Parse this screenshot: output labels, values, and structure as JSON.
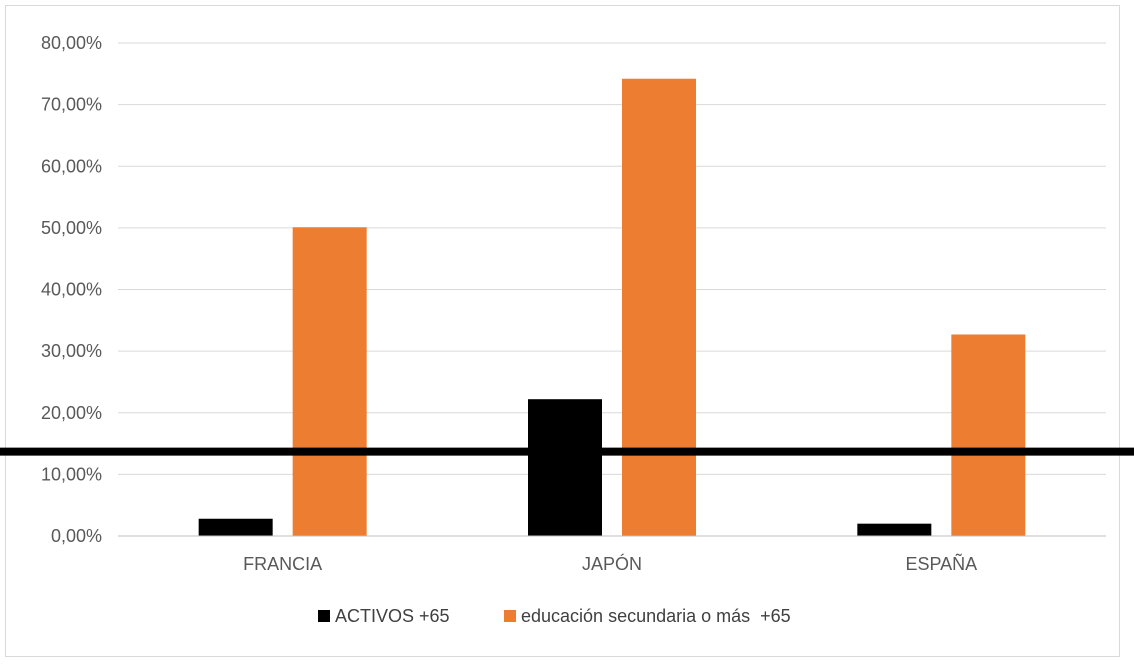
{
  "chart_data": {
    "type": "bar",
    "categories": [
      "FRANCIA",
      "JAPÓN",
      "ESPAÑA"
    ],
    "series": [
      {
        "name": "ACTIVOS +65",
        "values": [
          2.8,
          22.2,
          2.0
        ],
        "color": "#000000"
      },
      {
        "name": "educación secundaria o más  +65",
        "values": [
          50.1,
          74.2,
          32.7
        ],
        "color": "#ed7d31"
      }
    ],
    "ylim": [
      0,
      80
    ],
    "yticks": [
      0,
      10,
      20,
      30,
      40,
      50,
      60,
      70,
      80
    ],
    "ytick_labels": [
      "0,00%",
      "10,00%",
      "20,00%",
      "30,00%",
      "40,00%",
      "50,00%",
      "60,00%",
      "70,00%",
      "80,00%"
    ],
    "reference_line": {
      "value": 13.7,
      "color": "#000000"
    },
    "grid": true,
    "legend_position": "bottom",
    "gridline_color": "#d9d9d9",
    "axis_color": "#bfbfbf"
  }
}
